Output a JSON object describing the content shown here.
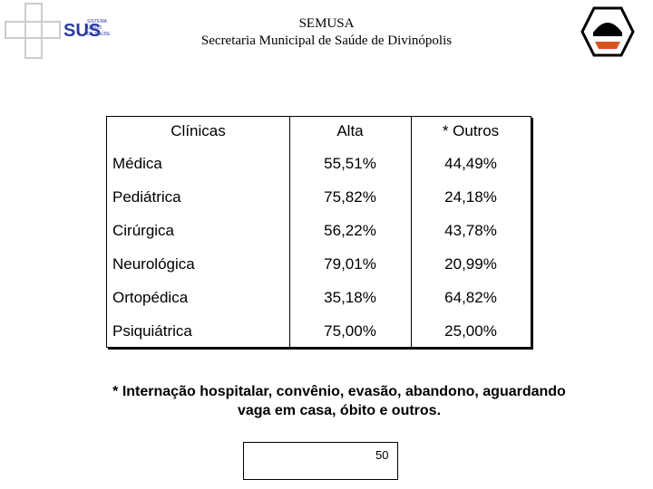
{
  "header": {
    "title": "SEMUSA",
    "subtitle": "Secretaria Municipal de Saúde de Divinópolis",
    "logo": {
      "acronym": "SUS",
      "lines": [
        "SISTEMA",
        "ÚNICO",
        "DE SAÚDE"
      ]
    }
  },
  "table": {
    "columns": [
      "Clínicas",
      "Alta",
      "* Outros"
    ],
    "rows": [
      [
        "Médica",
        "55,51%",
        "44,49%"
      ],
      [
        "Pediátrica",
        "75,82%",
        "24,18%"
      ],
      [
        "Cirúrgica",
        "56,22%",
        "43,78%"
      ],
      [
        "Neurológica",
        "79,01%",
        "20,99%"
      ],
      [
        "Ortopédica",
        "35,18%",
        "64,82%"
      ],
      [
        "Psiquiátrica",
        "75,00%",
        "25,00%"
      ]
    ]
  },
  "footnote": [
    "* Internação hospitalar, convênio, evasão, abandono, aguardando",
    "vaga em casa, óbito e outros."
  ],
  "page_number": "50"
}
